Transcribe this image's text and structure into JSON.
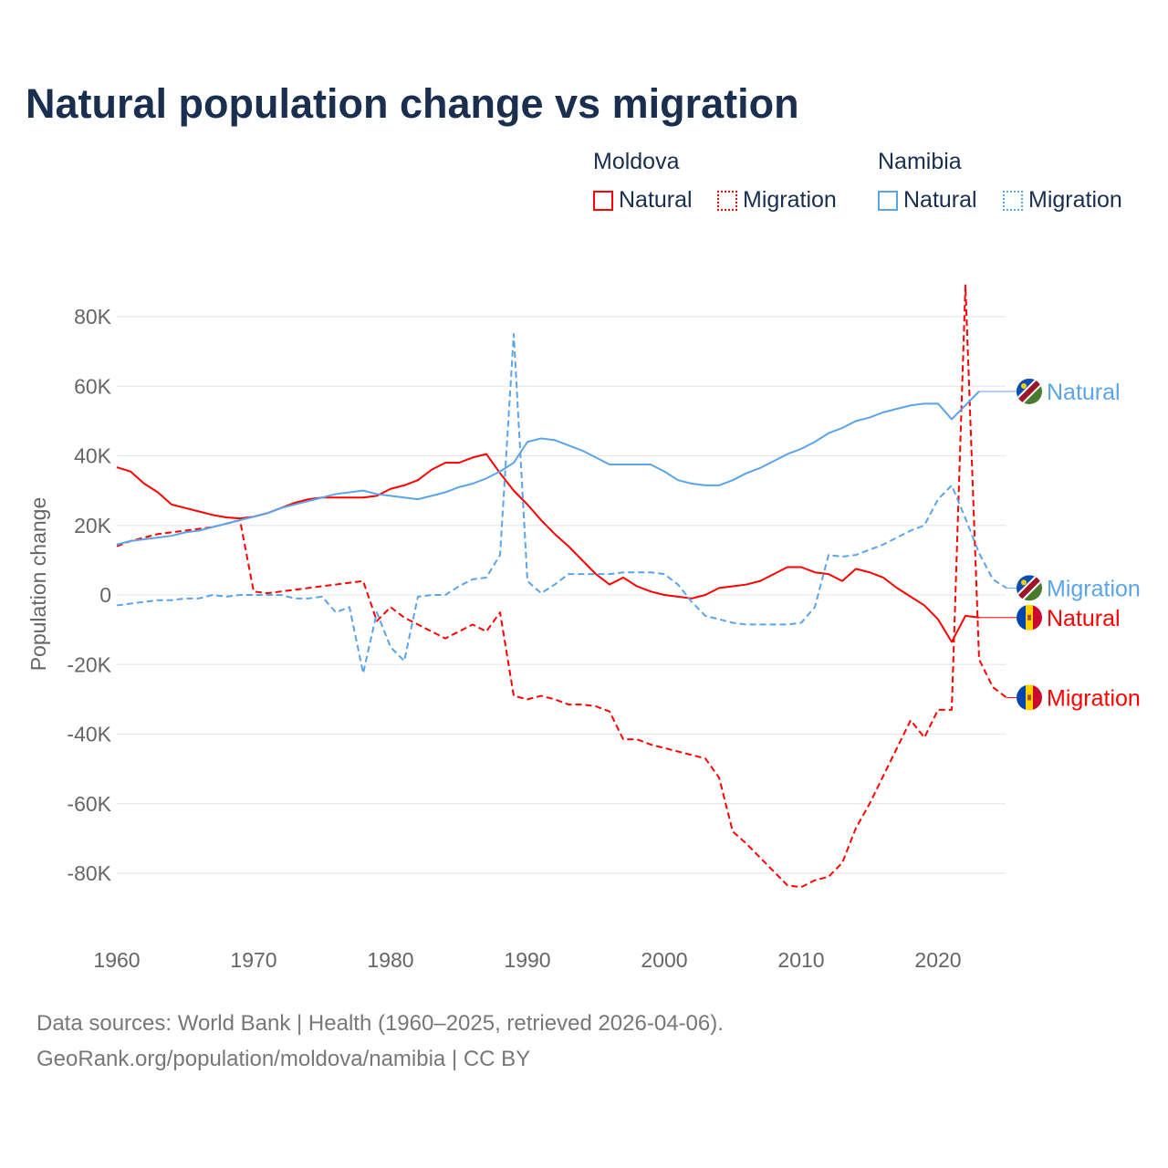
{
  "chart_data": {
    "type": "line",
    "title": "Natural population change vs migration",
    "xlabel": "",
    "ylabel": "Population change",
    "xlim": [
      1960,
      2025
    ],
    "ylim": [
      -90000,
      90000
    ],
    "x_ticks": [
      1960,
      1970,
      1980,
      1990,
      2000,
      2010,
      2020
    ],
    "x_tick_labels": [
      "1960",
      "1970",
      "1980",
      "1990",
      "2000",
      "2010",
      "2020"
    ],
    "y_ticks": [
      80000,
      60000,
      40000,
      20000,
      0,
      -20000,
      -40000,
      -60000,
      -80000
    ],
    "y_tick_labels": [
      "80K",
      "60K",
      "40K",
      "20K",
      "0",
      "-20K",
      "-40K",
      "-60K",
      "-80K"
    ],
    "grid": true,
    "legend": {
      "placement": "top-right",
      "groups": [
        {
          "name": "Moldova",
          "items": [
            "Natural",
            "Migration"
          ]
        },
        {
          "name": "Namibia",
          "items": [
            "Natural",
            "Migration"
          ]
        }
      ]
    },
    "x_start": 1960,
    "series": [
      {
        "name": "Moldova Natural",
        "country": "Moldova",
        "kind": "Natural",
        "end_label": "Natural",
        "color": "#ff0000",
        "dashed": false,
        "values": [
          36700,
          35500,
          32000,
          29500,
          26000,
          25000,
          24000,
          23000,
          22300,
          22000,
          22500,
          23500,
          25000,
          26500,
          27500,
          28000,
          28000,
          28000,
          28000,
          28500,
          30500,
          31500,
          33000,
          36000,
          38000,
          38000,
          39500,
          40500,
          35000,
          30000,
          26000,
          21500,
          17500,
          14000,
          10000,
          6000,
          3000,
          5000,
          2500,
          1000,
          0,
          -500,
          -1000,
          0,
          2000,
          2500,
          3000,
          4000,
          6000,
          8000,
          8000,
          6500,
          6000,
          4000,
          7500,
          6500,
          5000,
          2000,
          -500,
          -3000,
          -7000,
          -13500,
          -6000,
          -6500
        ]
      },
      {
        "name": "Moldova Migration",
        "country": "Moldova",
        "kind": "Migration",
        "end_label": "Migration",
        "color": "#ff0000",
        "dashed": true,
        "values": [
          14000,
          15500,
          16500,
          17500,
          18000,
          18500,
          19000,
          19500,
          20500,
          21500,
          1000,
          500,
          1000,
          1500,
          2000,
          2500,
          3000,
          3500,
          4000,
          -7500,
          -3500,
          -6500,
          -8500,
          -10500,
          -12500,
          -10500,
          -8500,
          -10500,
          -5000,
          -29000,
          -30000,
          -29000,
          -30000,
          -31500,
          -31500,
          -32000,
          -33500,
          -41500,
          -41500,
          -43000,
          -44000,
          -45000,
          -46000,
          -47000,
          -52500,
          -68000,
          -71500,
          -75500,
          -79500,
          -83500,
          -84000,
          -82000,
          -81000,
          -77000,
          -67000,
          -60000,
          -52000,
          -44000,
          -36000,
          -41000,
          -33000,
          -33000,
          89000,
          -18500,
          -26500,
          -29500
        ]
      },
      {
        "name": "Namibia Natural",
        "country": "Namibia",
        "kind": "Natural",
        "end_label": "Natural",
        "color": "#5ba4ea",
        "dashed": false,
        "values": [
          14500,
          15500,
          16000,
          16500,
          17000,
          18000,
          18500,
          19500,
          20500,
          21500,
          22500,
          23500,
          25000,
          26000,
          27000,
          28000,
          29000,
          29500,
          30000,
          29000,
          28500,
          28000,
          27500,
          28500,
          29500,
          31000,
          32000,
          33500,
          35500,
          38000,
          44000,
          45000,
          44500,
          43000,
          41500,
          39500,
          37500,
          37500,
          37500,
          37500,
          35500,
          33000,
          32000,
          31500,
          31500,
          33000,
          35000,
          36500,
          38500,
          40500,
          42000,
          44000,
          46500,
          48000,
          50000,
          51000,
          52500,
          53500,
          54500,
          55000,
          55000,
          50500,
          54500,
          58500
        ]
      },
      {
        "name": "Namibia Migration",
        "country": "Namibia",
        "kind": "Migration",
        "end_label": "Migration",
        "color": "#5ba4ea",
        "dashed": true,
        "values": [
          -3000,
          -2500,
          -2000,
          -1500,
          -1500,
          -1000,
          -1000,
          0,
          -500,
          0,
          0,
          0,
          0,
          -1000,
          -1000,
          -500,
          -5000,
          -3500,
          -22500,
          -5000,
          -15000,
          -19000,
          -500,
          0,
          0,
          2500,
          4500,
          5000,
          11500,
          75000,
          4000,
          500,
          3000,
          6000,
          6000,
          6000,
          6000,
          6500,
          6500,
          6500,
          6000,
          3000,
          -2000,
          -6000,
          -7000,
          -8000,
          -8500,
          -8500,
          -8500,
          -8500,
          -8000,
          -3500,
          11500,
          11000,
          11500,
          13000,
          14500,
          16500,
          18500,
          20000,
          27500,
          31500,
          22000,
          12000,
          4500,
          2000
        ]
      }
    ]
  },
  "footer": {
    "line1": "Data sources: World Bank | Health (1960–2025, retrieved 2026-04-06).",
    "line2": "GeoRank.org/population/moldova/namibia | CC BY"
  }
}
